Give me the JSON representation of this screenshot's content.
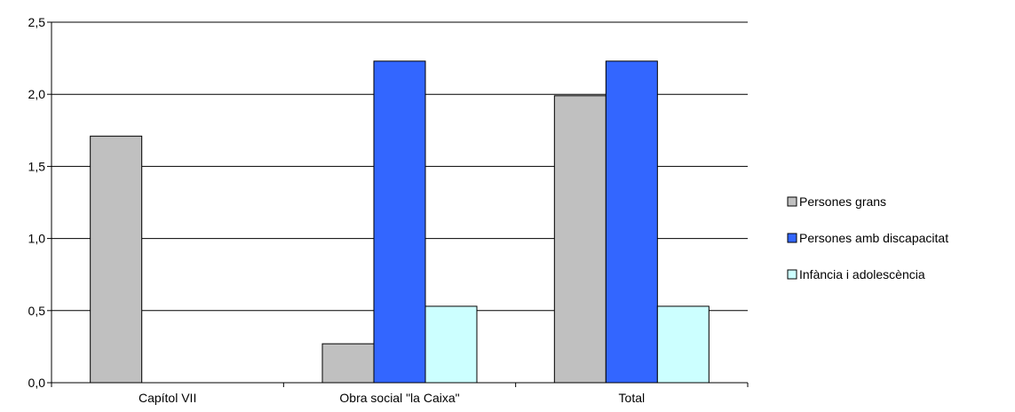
{
  "chart_data": {
    "type": "bar",
    "categories": [
      "Capítol  VII",
      "Obra social \"la Caixa\"",
      "Total"
    ],
    "series": [
      {
        "name": "Persones grans",
        "values": [
          1.71,
          0.27,
          1.99
        ],
        "color": "#c0c0c0"
      },
      {
        "name": "Persones amb discapacitat",
        "values": [
          0,
          2.23,
          2.23
        ],
        "color": "#3366ff"
      },
      {
        "name": "Infància i adolescència",
        "values": [
          0,
          0.53,
          0.53
        ],
        "color": "#ccffff"
      }
    ],
    "ylim": [
      0,
      2.5
    ],
    "yticks": [
      "0,0",
      "0,5",
      "1,0",
      "1,5",
      "2,0",
      "2,5"
    ],
    "grid": true,
    "legend_position": "right",
    "title": "",
    "xlabel": "",
    "ylabel": ""
  }
}
